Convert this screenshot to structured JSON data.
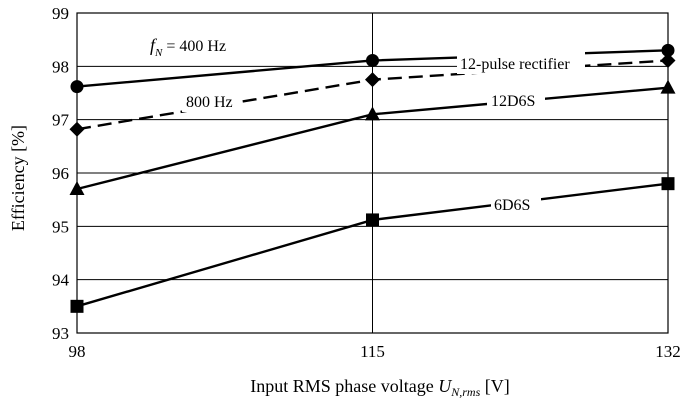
{
  "chart_data": {
    "type": "line",
    "xlabel": "Input RMS phase voltage U_N,rms [V]",
    "xlabel_parts": {
      "prefix": "Input RMS phase voltage ",
      "symbol": "U",
      "subscript": "N,rms",
      "suffix": " [V]"
    },
    "ylabel": "Efficiency [%]",
    "x": [
      98,
      115,
      132
    ],
    "xticks": [
      "98",
      "115",
      "132"
    ],
    "ylim": [
      93,
      99
    ],
    "yticks": [
      "93",
      "94",
      "95",
      "96",
      "97",
      "98",
      "99"
    ],
    "grid": true,
    "series": [
      {
        "name": "12-pulse rectifier",
        "annotation": "400 Hz",
        "marker": "circle",
        "dash": false,
        "values": [
          97.62,
          98.11,
          98.3
        ]
      },
      {
        "name": "12-pulse rectifier",
        "annotation": "800 Hz",
        "marker": "diamond",
        "dash": true,
        "values": [
          96.82,
          97.75,
          98.11
        ]
      },
      {
        "name": "12D6S",
        "marker": "triangle",
        "dash": false,
        "values": [
          95.7,
          97.1,
          97.6
        ]
      },
      {
        "name": "6D6S",
        "marker": "square",
        "dash": false,
        "values": [
          93.5,
          95.12,
          95.8
        ]
      }
    ],
    "annotations": {
      "fn_symbol": "f",
      "fn_sub": "N",
      "fn_eq": " = 400 Hz",
      "hz800": "800 Hz",
      "rect12": "12-pulse rectifier",
      "d12": "12D6S",
      "d6": "6D6S"
    }
  }
}
